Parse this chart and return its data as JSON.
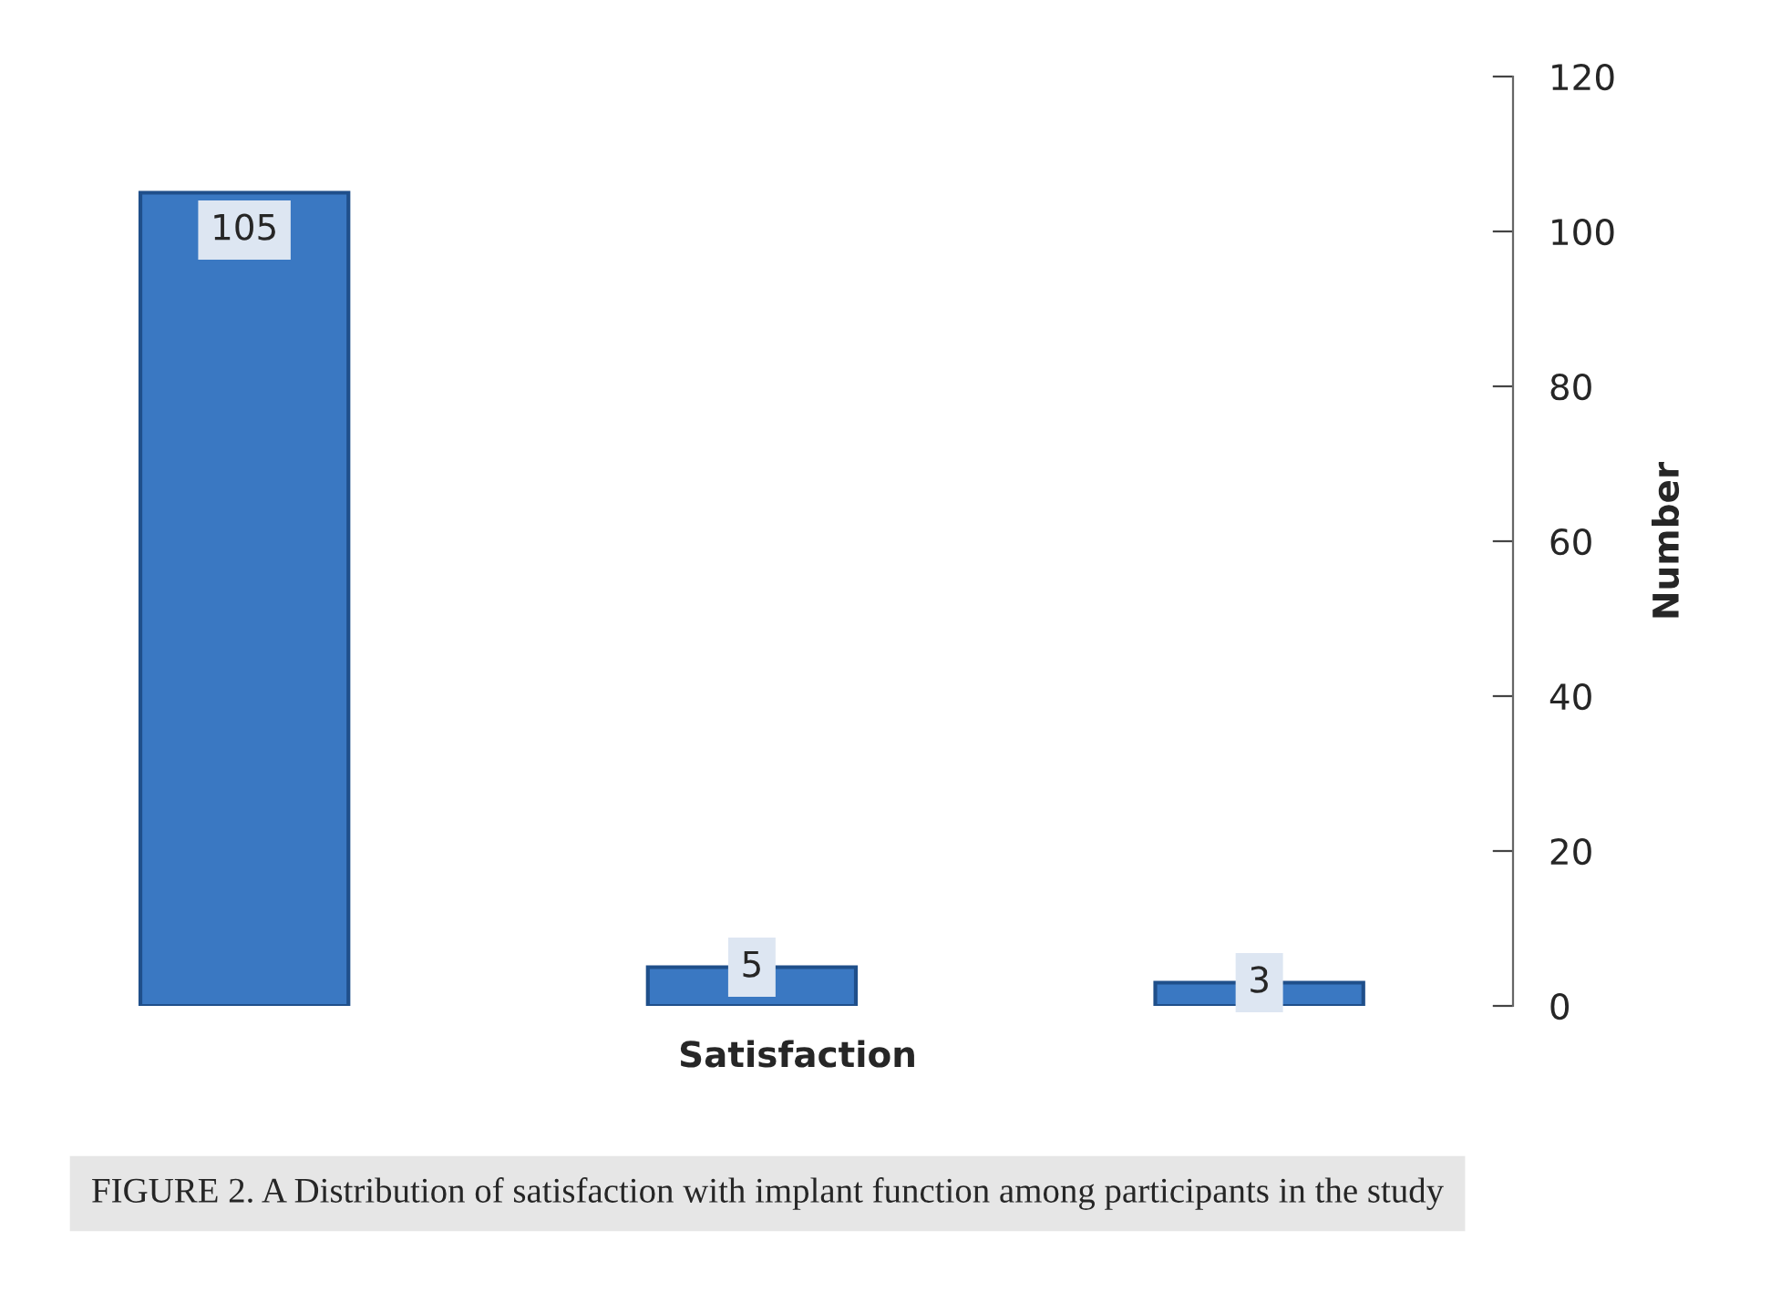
{
  "chart_data": {
    "type": "bar",
    "categories": [
      null,
      null,
      null
    ],
    "values": [
      105,
      5,
      3
    ],
    "color": "#3a78c2",
    "xlabel": "Satisfaction",
    "ylabel": "Number",
    "ylim": [
      0,
      120
    ],
    "yticks": [
      0,
      20,
      40,
      60,
      80,
      100,
      120
    ],
    "data_labels": true,
    "grid": false,
    "annotations": [
      "FIGURE 2. A Distribution of satisfaction with implant function among participants in the study"
    ]
  }
}
